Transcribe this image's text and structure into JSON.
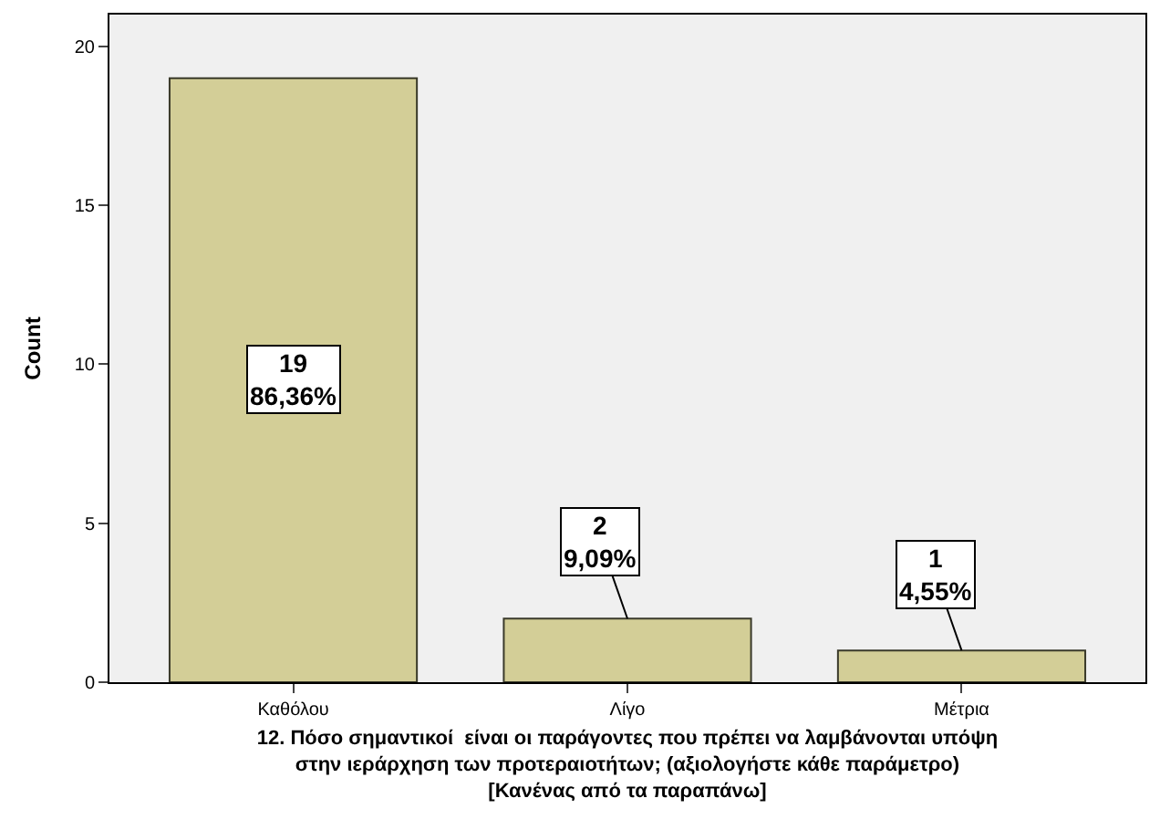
{
  "chart_data": {
    "type": "bar",
    "categories": [
      "Καθόλου",
      "Λίγο",
      "Μέτρια"
    ],
    "values": [
      19,
      2,
      1
    ],
    "value_labels": [
      "19\n86,36%",
      "2\n9,09%",
      "1\n4,55%"
    ],
    "color": "#d3ce97",
    "xlabel": "12. Πόσο σημαντικοί  είναι οι παράγοντες που πρέπει να λαμβάνονται υπόψη\nστην ιεράρχηση των προτεραιοτήτων; (αξιολογήστε κάθε παράμετρο)\n[Κανένας από τα παραπάνω]",
    "ylabel": "Count",
    "ylim": [
      0,
      21
    ],
    "yticks": [
      0,
      5,
      10,
      15,
      20
    ]
  }
}
